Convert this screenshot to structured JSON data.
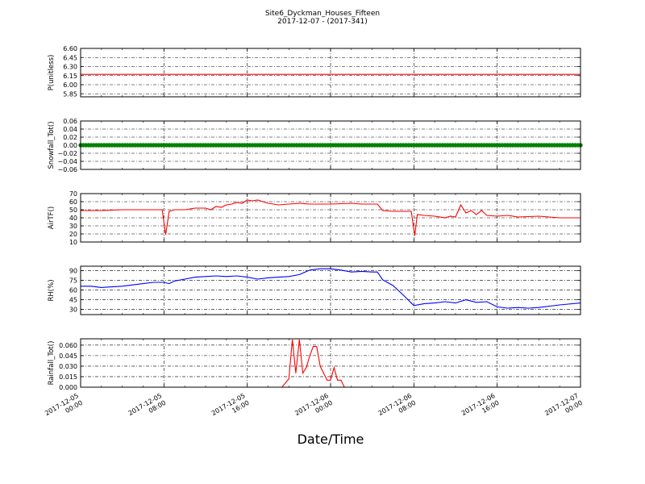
{
  "figure": {
    "title": "Site6_Dyckman_Houses_Fifteen",
    "subtitle": "2017-12-07 - (2017-341)",
    "xlabel": "Date/Time",
    "x_ticks": [
      {
        "line1": "2017-12-05",
        "line2": "00:00"
      },
      {
        "line1": "2017-12-05",
        "line2": "08:00"
      },
      {
        "line1": "2017-12-05",
        "line2": "16:00"
      },
      {
        "line1": "2017-12-06",
        "line2": "00:00"
      },
      {
        "line1": "2017-12-06",
        "line2": "08:00"
      },
      {
        "line1": "2017-12-06",
        "line2": "16:00"
      },
      {
        "line1": "2017-12-07",
        "line2": "00:00"
      }
    ]
  },
  "chart_data": [
    {
      "type": "line",
      "ylabel": "P(unitless)",
      "xlim": [
        "2017-12-05 00:00",
        "2017-12-07 00:00"
      ],
      "ylim": [
        5.8,
        6.6
      ],
      "yticks": [
        "6.60",
        "6.45",
        "6.30",
        "6.15",
        "6.00",
        "5.85"
      ],
      "grid": true,
      "color": "#ff0000",
      "marker": false,
      "x": [
        "2017-12-05 00:00",
        "2017-12-07 00:00"
      ],
      "y": [
        6.17,
        6.17
      ]
    },
    {
      "type": "line",
      "ylabel": "Snowfall_Tot()",
      "xlim": [
        "2017-12-05 00:00",
        "2017-12-07 00:00"
      ],
      "ylim": [
        -0.06,
        0.06
      ],
      "yticks": [
        "0.06",
        "0.04",
        "0.02",
        "0.00",
        "−0.02",
        "−0.04",
        "−0.06"
      ],
      "grid": true,
      "color": "#008000",
      "marker": true,
      "x": [
        "2017-12-05 00:00",
        "2017-12-07 00:00"
      ],
      "y": [
        0.0,
        0.0
      ]
    },
    {
      "type": "line",
      "ylabel": "AirTF()",
      "xlim": [
        "2017-12-05 00:00",
        "2017-12-07 00:00"
      ],
      "ylim": [
        10,
        70
      ],
      "yticks": [
        "70",
        "60",
        "50",
        "40",
        "30",
        "20",
        "10"
      ],
      "grid": true,
      "color": "#ff0000",
      "marker": false,
      "x": [
        "2017-12-05 00:00",
        "2017-12-05 02:00",
        "2017-12-05 04:00",
        "2017-12-05 06:00",
        "2017-12-05 07:30",
        "2017-12-05 07:50",
        "2017-12-05 08:10",
        "2017-12-05 08:30",
        "2017-12-05 09:00",
        "2017-12-05 10:00",
        "2017-12-05 11:00",
        "2017-12-05 12:00",
        "2017-12-05 12:30",
        "2017-12-05 13:00",
        "2017-12-05 13:30",
        "2017-12-05 14:00",
        "2017-12-05 14:30",
        "2017-12-05 15:00",
        "2017-12-05 15:30",
        "2017-12-05 16:00",
        "2017-12-05 16:30",
        "2017-12-05 17:00",
        "2017-12-05 18:00",
        "2017-12-05 19:00",
        "2017-12-05 20:00",
        "2017-12-05 21:00",
        "2017-12-05 22:00",
        "2017-12-06 00:00",
        "2017-12-06 02:00",
        "2017-12-06 03:00",
        "2017-12-06 04:00",
        "2017-12-06 04:30",
        "2017-12-06 05:00",
        "2017-12-06 06:00",
        "2017-12-06 07:00",
        "2017-12-06 07:45",
        "2017-12-06 08:05",
        "2017-12-06 08:20",
        "2017-12-06 09:00",
        "2017-12-06 10:00",
        "2017-12-06 11:00",
        "2017-12-06 11:30",
        "2017-12-06 12:00",
        "2017-12-06 12:30",
        "2017-12-06 13:00",
        "2017-12-06 13:30",
        "2017-12-06 14:00",
        "2017-12-06 14:30",
        "2017-12-06 15:00",
        "2017-12-06 16:00",
        "2017-12-06 17:00",
        "2017-12-06 18:00",
        "2017-12-06 20:00",
        "2017-12-06 22:00",
        "2017-12-07 00:00"
      ],
      "y": [
        49,
        49,
        50,
        50,
        50,
        50,
        19,
        48,
        50,
        50,
        52,
        52,
        50,
        54,
        53,
        56,
        57,
        59,
        58,
        62,
        61,
        62,
        58,
        56,
        57,
        58,
        57,
        57,
        58,
        57,
        57,
        57,
        49,
        48,
        48,
        48,
        18,
        44,
        43,
        42,
        40,
        42,
        41,
        56,
        46,
        49,
        44,
        49,
        43,
        42,
        43,
        41,
        42,
        40,
        40
      ]
    },
    {
      "type": "line",
      "ylabel": "RH(%)",
      "xlim": [
        "2017-12-05 00:00",
        "2017-12-07 00:00"
      ],
      "ylim": [
        22,
        97
      ],
      "yticks": [
        "90",
        "75",
        "60",
        "45",
        "30"
      ],
      "grid": true,
      "color": "#0000ff",
      "marker": false,
      "x": [
        "2017-12-05 00:00",
        "2017-12-05 01:00",
        "2017-12-05 02:00",
        "2017-12-05 03:00",
        "2017-12-05 04:00",
        "2017-12-05 05:00",
        "2017-12-05 06:00",
        "2017-12-05 07:00",
        "2017-12-05 08:00",
        "2017-12-05 08:30",
        "2017-12-05 09:00",
        "2017-12-05 10:00",
        "2017-12-05 11:00",
        "2017-12-05 12:00",
        "2017-12-05 13:00",
        "2017-12-05 14:00",
        "2017-12-05 15:00",
        "2017-12-05 16:00",
        "2017-12-05 17:00",
        "2017-12-05 18:00",
        "2017-12-05 19:00",
        "2017-12-05 20:00",
        "2017-12-05 21:00",
        "2017-12-05 22:00",
        "2017-12-05 23:00",
        "2017-12-06 00:00",
        "2017-12-06 01:00",
        "2017-12-06 02:00",
        "2017-12-06 03:00",
        "2017-12-06 04:00",
        "2017-12-06 04:30",
        "2017-12-06 05:00",
        "2017-12-06 06:00",
        "2017-12-06 07:00",
        "2017-12-06 08:00",
        "2017-12-06 09:00",
        "2017-12-06 10:00",
        "2017-12-06 11:00",
        "2017-12-06 12:00",
        "2017-12-06 13:00",
        "2017-12-06 14:00",
        "2017-12-06 15:00",
        "2017-12-06 16:00",
        "2017-12-06 17:00",
        "2017-12-06 18:00",
        "2017-12-06 19:00",
        "2017-12-06 20:00",
        "2017-12-06 22:00",
        "2017-12-07 00:00"
      ],
      "y": [
        66,
        66,
        64,
        65,
        66,
        68,
        70,
        72,
        72,
        70,
        74,
        77,
        80,
        81,
        82,
        81,
        82,
        80,
        77,
        79,
        80,
        81,
        84,
        91,
        93,
        93,
        91,
        88,
        89,
        88,
        88,
        76,
        67,
        52,
        36,
        39,
        40,
        42,
        40,
        45,
        41,
        42,
        34,
        32,
        33,
        32,
        33,
        37,
        40
      ]
    },
    {
      "type": "line",
      "ylabel": "Rainfall_Tot()",
      "xlim": [
        "2017-12-05 00:00",
        "2017-12-07 00:00"
      ],
      "ylim": [
        0,
        0.069
      ],
      "yticks": [
        "0.060",
        "0.045",
        "0.030",
        "0.015",
        "0.000"
      ],
      "grid": true,
      "color": "#ff0000",
      "marker": false,
      "x": [
        "2017-12-05 00:00",
        "2017-12-05 19:20",
        "2017-12-05 20:00",
        "2017-12-05 20:20",
        "2017-12-05 20:40",
        "2017-12-05 21:00",
        "2017-12-05 21:20",
        "2017-12-05 21:40",
        "2017-12-05 22:00",
        "2017-12-05 22:20",
        "2017-12-05 22:40",
        "2017-12-05 23:00",
        "2017-12-05 23:20",
        "2017-12-05 23:40",
        "2017-12-06 00:00",
        "2017-12-06 00:20",
        "2017-12-06 00:40",
        "2017-12-06 01:00",
        "2017-12-06 01:20",
        "2017-12-06 07:00",
        "2017-12-07 00:00"
      ],
      "y": [
        0,
        0,
        0.012,
        0.068,
        0.02,
        0.068,
        0.02,
        0.028,
        0.045,
        0.058,
        0.058,
        0.03,
        0.02,
        0.01,
        0.01,
        0.028,
        0.01,
        0.01,
        0,
        0,
        0
      ]
    }
  ]
}
